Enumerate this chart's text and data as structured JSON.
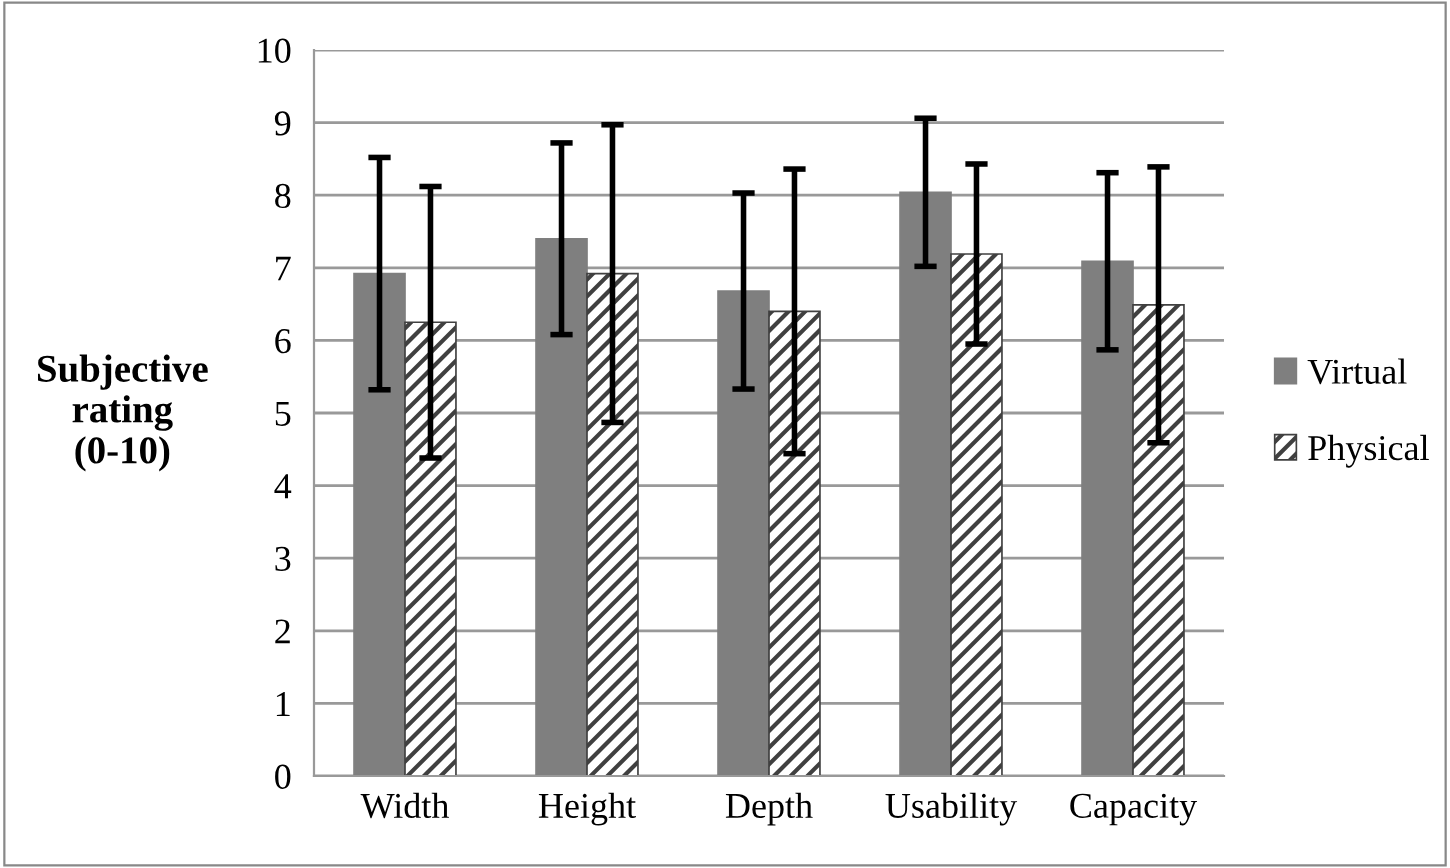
{
  "chart_data": {
    "type": "bar",
    "ylabel": "Subjective\nrating\n(0-10)",
    "categories": [
      "Width",
      "Height",
      "Depth",
      "Usability",
      "Capacity"
    ],
    "series": [
      {
        "name": "Virtual",
        "color": "#7f7f7f",
        "values": [
          6.92,
          7.4,
          6.68,
          8.04,
          7.09
        ],
        "errors": [
          1.6,
          1.32,
          1.35,
          1.02,
          1.22
        ]
      },
      {
        "name": "Physical",
        "color": "#404040",
        "values": [
          6.25,
          6.92,
          6.4,
          7.19,
          6.49
        ],
        "errors": [
          1.87,
          2.05,
          1.96,
          1.24,
          1.9
        ]
      }
    ],
    "ylim": [
      0,
      10
    ],
    "yticks": [
      0,
      1,
      2,
      3,
      4,
      5,
      6,
      7,
      8,
      9,
      10
    ],
    "grid": "y",
    "legend": "right"
  }
}
